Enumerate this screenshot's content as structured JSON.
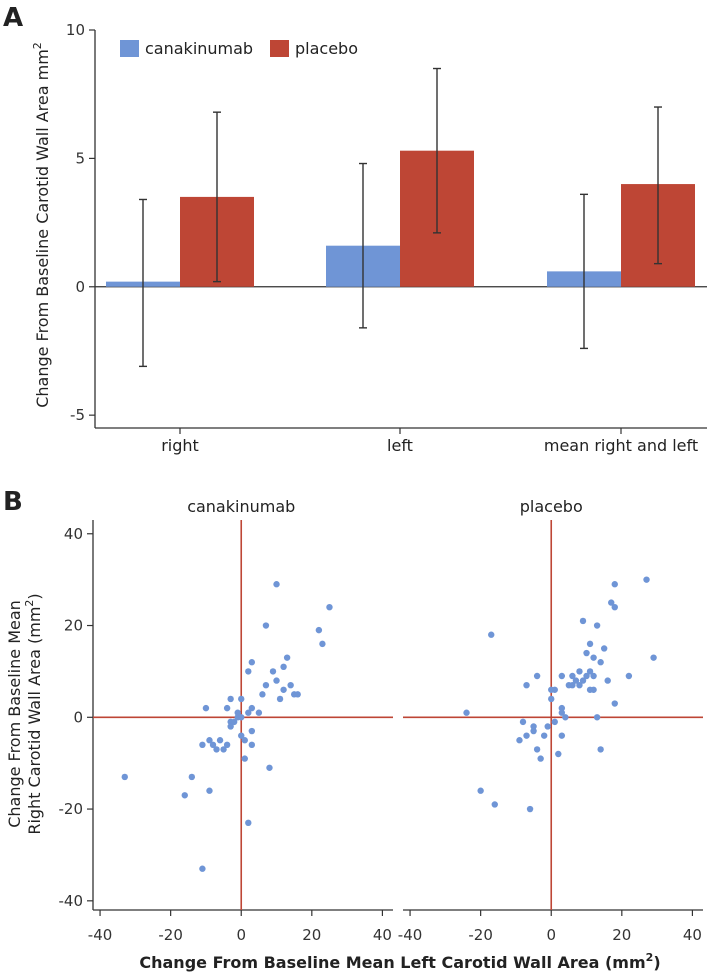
{
  "panel_a_label": "A",
  "panel_b_label": "B",
  "chart_data": [
    {
      "type": "bar",
      "ylabel": "Change From Baseline Carotid Wall Area mm",
      "ylabel_superscript": "2",
      "ylim": [
        -5.5,
        10
      ],
      "yticks": [
        {
          "value": 10,
          "label": "10"
        },
        {
          "value": 5,
          "label": "5"
        },
        {
          "value": 0,
          "label": "0"
        },
        {
          "value": -5,
          "label": "-5"
        }
      ],
      "categories": [
        "right",
        "left",
        "mean right and left"
      ],
      "series": [
        {
          "name": "canakinumab",
          "color": "#6f95d6",
          "values": [
            0.2,
            1.6,
            0.6
          ],
          "err_low": [
            -3.1,
            -1.6,
            -2.4
          ],
          "err_high": [
            3.4,
            4.8,
            3.6
          ]
        },
        {
          "name": "placebo",
          "color": "#be4635",
          "values": [
            3.5,
            5.3,
            4.0
          ],
          "err_low": [
            0.2,
            2.1,
            0.9
          ],
          "err_high": [
            6.8,
            8.5,
            7.0
          ]
        }
      ],
      "legend": "top-left"
    },
    {
      "type": "scatter",
      "facets": [
        {
          "title": "canakinumab",
          "points": [
            [
              -33,
              -13
            ],
            [
              -16,
              -17
            ],
            [
              -14,
              -13
            ],
            [
              -11,
              -33
            ],
            [
              -11,
              -6
            ],
            [
              -10,
              2
            ],
            [
              -9,
              -16
            ],
            [
              -9,
              -5
            ],
            [
              -8,
              -6
            ],
            [
              -7,
              -7
            ],
            [
              -6,
              -5
            ],
            [
              -5,
              -7
            ],
            [
              -4,
              2
            ],
            [
              -4,
              -6
            ],
            [
              -3,
              -1
            ],
            [
              -3,
              -2
            ],
            [
              -3,
              4
            ],
            [
              -2,
              -1
            ],
            [
              -1,
              0
            ],
            [
              -1,
              1
            ],
            [
              0,
              0
            ],
            [
              0,
              -4
            ],
            [
              0,
              4
            ],
            [
              1,
              -9
            ],
            [
              1,
              -5
            ],
            [
              2,
              -23
            ],
            [
              2,
              10
            ],
            [
              2,
              1
            ],
            [
              3,
              2
            ],
            [
              3,
              -3
            ],
            [
              3,
              -6
            ],
            [
              3,
              12
            ],
            [
              5,
              1
            ],
            [
              6,
              5
            ],
            [
              7,
              20
            ],
            [
              7,
              7
            ],
            [
              8,
              -11
            ],
            [
              9,
              10
            ],
            [
              10,
              8
            ],
            [
              10,
              29
            ],
            [
              11,
              4
            ],
            [
              12,
              6
            ],
            [
              12,
              11
            ],
            [
              13,
              13
            ],
            [
              14,
              7
            ],
            [
              15,
              5
            ],
            [
              16,
              5
            ],
            [
              22,
              19
            ],
            [
              23,
              16
            ],
            [
              25,
              24
            ]
          ]
        },
        {
          "title": "placebo",
          "points": [
            [
              -24,
              1
            ],
            [
              -20,
              -16
            ],
            [
              -17,
              18
            ],
            [
              -16,
              -19
            ],
            [
              -9,
              -5
            ],
            [
              -8,
              -1
            ],
            [
              -7,
              7
            ],
            [
              -7,
              -4
            ],
            [
              -6,
              -20
            ],
            [
              -5,
              -2
            ],
            [
              -5,
              -3
            ],
            [
              -4,
              -7
            ],
            [
              -4,
              9
            ],
            [
              -3,
              -9
            ],
            [
              -2,
              -4
            ],
            [
              -1,
              -2
            ],
            [
              0,
              4
            ],
            [
              0,
              6
            ],
            [
              1,
              -1
            ],
            [
              1,
              6
            ],
            [
              2,
              -8
            ],
            [
              3,
              -4
            ],
            [
              3,
              1
            ],
            [
              3,
              2
            ],
            [
              3,
              9
            ],
            [
              4,
              0
            ],
            [
              5,
              7
            ],
            [
              6,
              7
            ],
            [
              6,
              9
            ],
            [
              7,
              8
            ],
            [
              8,
              10
            ],
            [
              8,
              7
            ],
            [
              9,
              8
            ],
            [
              9,
              21
            ],
            [
              10,
              9
            ],
            [
              10,
              14
            ],
            [
              11,
              6
            ],
            [
              11,
              10
            ],
            [
              11,
              16
            ],
            [
              12,
              13
            ],
            [
              12,
              6
            ],
            [
              12,
              9
            ],
            [
              13,
              0
            ],
            [
              13,
              20
            ],
            [
              14,
              -7
            ],
            [
              14,
              12
            ],
            [
              15,
              15
            ],
            [
              16,
              8
            ],
            [
              17,
              25
            ],
            [
              18,
              24
            ],
            [
              18,
              29
            ],
            [
              18,
              3
            ],
            [
              22,
              9
            ],
            [
              27,
              30
            ],
            [
              29,
              13
            ]
          ]
        }
      ],
      "xlim": [
        -42,
        43
      ],
      "ylim": [
        -42,
        43
      ],
      "xticks": [
        {
          "value": -40,
          "label": "-40"
        },
        {
          "value": -20,
          "label": "-20"
        },
        {
          "value": 0,
          "label": "0"
        },
        {
          "value": 20,
          "label": "20"
        },
        {
          "value": 40,
          "label": "40"
        }
      ],
      "yticks": [
        {
          "value": 40,
          "label": "40"
        },
        {
          "value": 20,
          "label": "20"
        },
        {
          "value": 0,
          "label": "0"
        },
        {
          "value": -20,
          "label": "-20"
        },
        {
          "value": -40,
          "label": "-40"
        }
      ],
      "ylabel_line1": "Change From Baseline Mean",
      "ylabel_line2": "Right Carotid Wall Area (mm",
      "ylabel_line2_sup": "2",
      "ylabel_line2_end": ")",
      "xlabel": "Change From Baseline Mean Left Carotid Wall Area (mm",
      "xlabel_sup": "2",
      "xlabel_end": ")",
      "point_color": "#6f95d6",
      "refline_color": "#be4635"
    }
  ]
}
